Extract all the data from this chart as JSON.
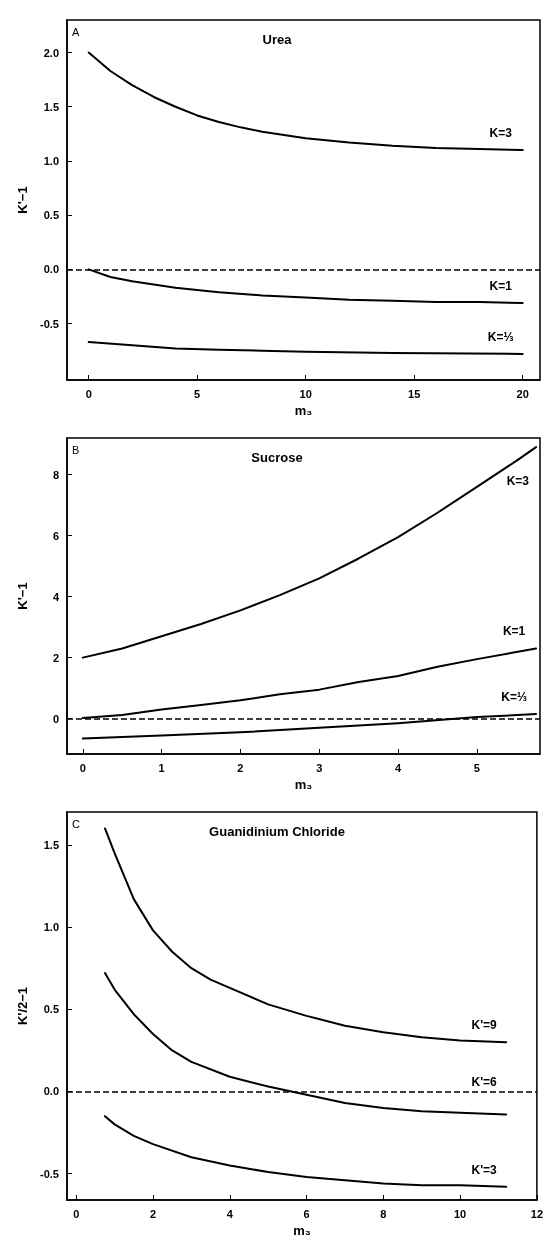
{
  "chart_data": [
    {
      "type": "line",
      "title": "Urea",
      "xlabel": "m₃",
      "ylabel": "K'−1",
      "annotations": [
        "A"
      ],
      "xlim": [
        -1,
        20.8
      ],
      "ylim": [
        -1.02,
        2.3
      ],
      "xticks": [
        0,
        5,
        10,
        15,
        20
      ],
      "yticks": [
        {
          "value": -0.5,
          "label": "-0.5"
        },
        {
          "value": 0,
          "label": "0.0"
        },
        {
          "value": 0.5,
          "label": "0.5"
        },
        {
          "value": 1,
          "label": "1.0"
        },
        {
          "value": 1.5,
          "label": "1.5"
        },
        {
          "value": 2,
          "label": "2.0"
        }
      ],
      "grid": false,
      "legend": false,
      "marker": "none",
      "line_style": "solid",
      "ref_lines": [
        {
          "axis": "y",
          "value": 0,
          "line_style": "dashed",
          "color": "#000000"
        }
      ],
      "series": [
        {
          "name": "K=3",
          "color": "#000000",
          "x": [
            0,
            1,
            2,
            3,
            4,
            5,
            6,
            7,
            8,
            10,
            12,
            14,
            16,
            18,
            20
          ],
          "values": [
            2.0,
            1.83,
            1.7,
            1.59,
            1.5,
            1.42,
            1.36,
            1.31,
            1.27,
            1.21,
            1.17,
            1.14,
            1.12,
            1.11,
            1.1
          ]
        },
        {
          "name": "K=1",
          "color": "#000000",
          "x": [
            0,
            1,
            2,
            4,
            6,
            8,
            10,
            12,
            14,
            16,
            18,
            20
          ],
          "values": [
            0,
            -0.07,
            -0.11,
            -0.17,
            -0.21,
            -0.24,
            -0.26,
            -0.28,
            -0.29,
            -0.3,
            -0.3,
            -0.31
          ]
        },
        {
          "name": "K=⅓",
          "color": "#000000",
          "x": [
            0,
            2,
            4,
            6,
            8,
            10,
            14,
            20
          ],
          "values": [
            -0.67,
            -0.7,
            -0.73,
            -0.74,
            -0.75,
            -0.76,
            -0.77,
            -0.78
          ]
        }
      ]
    },
    {
      "type": "line",
      "title": "Sucrose",
      "xlabel": "m₃",
      "ylabel": "K'−1",
      "annotations": [
        "B"
      ],
      "xlim": [
        -0.2,
        5.8
      ],
      "ylim": [
        -1.16,
        9.2
      ],
      "xticks": [
        0,
        1,
        2,
        3,
        4,
        5
      ],
      "yticks": [
        0,
        2,
        4,
        6,
        8
      ],
      "grid": false,
      "legend": false,
      "marker": "none",
      "line_style": "solid",
      "ref_lines": [
        {
          "axis": "y",
          "value": 0,
          "line_style": "dashed",
          "color": "#000000"
        }
      ],
      "series": [
        {
          "name": "K=3",
          "color": "#000000",
          "x": [
            0,
            0.5,
            1,
            1.5,
            2,
            2.5,
            3,
            3.5,
            4,
            4.5,
            5,
            5.5,
            5.75
          ],
          "values": [
            2.0,
            2.3,
            2.7,
            3.1,
            3.55,
            4.05,
            4.6,
            5.25,
            5.95,
            6.75,
            7.6,
            8.45,
            8.9
          ]
        },
        {
          "name": "K=1",
          "color": "#000000",
          "x": [
            0,
            0.5,
            1,
            1.5,
            2,
            2.5,
            3,
            3.5,
            4,
            4.5,
            5,
            5.75
          ],
          "values": [
            0.02,
            0.12,
            0.3,
            0.45,
            0.6,
            0.8,
            0.95,
            1.2,
            1.4,
            1.7,
            1.95,
            2.3
          ]
        },
        {
          "name": "K=⅓",
          "color": "#000000",
          "x": [
            0,
            1,
            2,
            3,
            4,
            5,
            5.75
          ],
          "values": [
            -0.65,
            -0.55,
            -0.45,
            -0.3,
            -0.15,
            0.05,
            0.15
          ]
        }
      ]
    },
    {
      "type": "line",
      "title": "Guanidinium Chloride",
      "xlabel": "m₃",
      "ylabel": "K'/2−1",
      "annotations": [
        "C"
      ],
      "xlim": [
        -0.24,
        12
      ],
      "ylim": [
        -0.66,
        1.7
      ],
      "xticks": [
        0,
        2,
        4,
        6,
        8,
        10,
        12
      ],
      "yticks": [
        {
          "value": -0.5,
          "label": "-0.5"
        },
        {
          "value": 0,
          "label": "0.0"
        },
        {
          "value": 0.5,
          "label": "0.5"
        },
        {
          "value": 1,
          "label": "1.0"
        },
        {
          "value": 1.5,
          "label": "1.5"
        }
      ],
      "grid": false,
      "legend": false,
      "marker": "none",
      "line_style": "solid",
      "ref_lines": [
        {
          "axis": "y",
          "value": 0,
          "line_style": "dashed",
          "color": "#000000"
        }
      ],
      "series": [
        {
          "name": "K'=9",
          "color": "#000000",
          "x": [
            0.75,
            1,
            1.5,
            2,
            2.5,
            3,
            3.5,
            4,
            5,
            6,
            7,
            8,
            9,
            10,
            11.2
          ],
          "values": [
            1.6,
            1.45,
            1.17,
            0.98,
            0.85,
            0.75,
            0.68,
            0.63,
            0.53,
            0.46,
            0.4,
            0.36,
            0.33,
            0.31,
            0.3
          ]
        },
        {
          "name": "K'=6",
          "color": "#000000",
          "x": [
            0.75,
            1,
            1.5,
            2,
            2.5,
            3,
            4,
            5,
            6,
            7,
            8,
            9,
            10,
            11.2
          ],
          "values": [
            0.72,
            0.62,
            0.47,
            0.35,
            0.25,
            0.18,
            0.09,
            0.03,
            -0.02,
            -0.07,
            -0.1,
            -0.12,
            -0.13,
            -0.14
          ]
        },
        {
          "name": "K'=3",
          "color": "#000000",
          "x": [
            0.75,
            1,
            1.5,
            2,
            3,
            4,
            5,
            6,
            7,
            8,
            9,
            10,
            11.2
          ],
          "values": [
            -0.15,
            -0.2,
            -0.27,
            -0.32,
            -0.4,
            -0.45,
            -0.49,
            -0.52,
            -0.54,
            -0.56,
            -0.57,
            -0.57,
            -0.58
          ]
        }
      ]
    }
  ]
}
